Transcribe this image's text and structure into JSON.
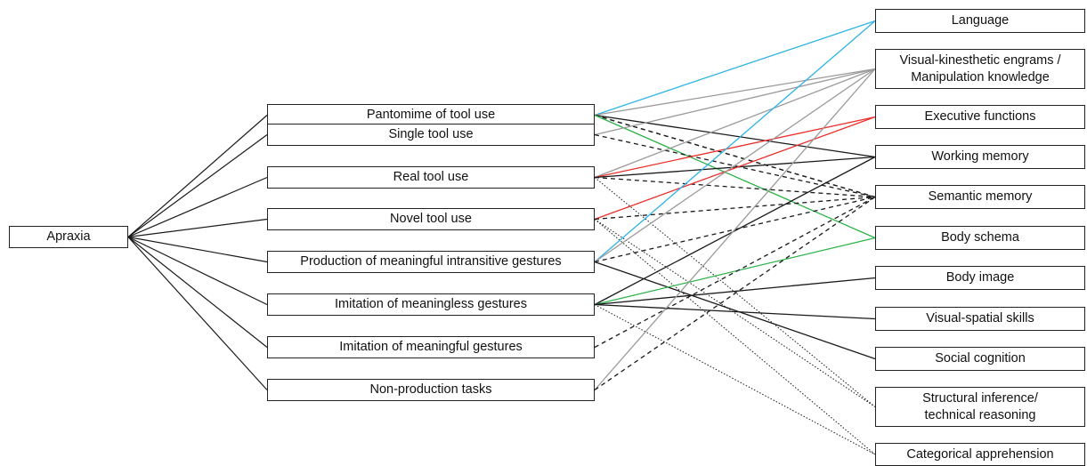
{
  "root": {
    "label": "Apraxia"
  },
  "tasks": [
    {
      "id": "t0",
      "label": "Pantomime of tool use"
    },
    {
      "id": "t1",
      "label": "Single tool use"
    },
    {
      "id": "t2",
      "label": "Real tool use"
    },
    {
      "id": "t3",
      "label": "Novel tool use"
    },
    {
      "id": "t4",
      "label": "Production of meaningful intransitive gestures"
    },
    {
      "id": "t5",
      "label": "Imitation of meaningless gestures"
    },
    {
      "id": "t6",
      "label": "Imitation of meaningful gestures"
    },
    {
      "id": "t7",
      "label": "Non-production tasks"
    }
  ],
  "functions": [
    {
      "id": "f0",
      "lines": [
        "Language"
      ]
    },
    {
      "id": "f1",
      "lines": [
        "Visual-kinesthetic engrams /",
        "Manipulation knowledge"
      ]
    },
    {
      "id": "f2",
      "lines": [
        "Executive functions"
      ]
    },
    {
      "id": "f3",
      "lines": [
        "Working memory"
      ]
    },
    {
      "id": "f4",
      "lines": [
        "Semantic memory"
      ]
    },
    {
      "id": "f5",
      "lines": [
        "Body schema"
      ]
    },
    {
      "id": "f6",
      "lines": [
        "Body image"
      ]
    },
    {
      "id": "f7",
      "lines": [
        "Visual-spatial skills"
      ]
    },
    {
      "id": "f8",
      "lines": [
        "Social cognition"
      ]
    },
    {
      "id": "f9",
      "lines": [
        "Structural inference/",
        "technical reasoning"
      ]
    },
    {
      "id": "f10",
      "lines": [
        "Categorical apprehension"
      ]
    }
  ],
  "line_colors": {
    "black": "#1a1a1a",
    "gray": "#9a9a9a",
    "blue": "#2fb3e6",
    "red": "#e8302c",
    "green": "#2db34a"
  },
  "connections": [
    {
      "from": "t0",
      "to": "f0",
      "color": "blue",
      "style": "solid"
    },
    {
      "from": "t0",
      "to": "f1",
      "color": "gray",
      "style": "solid"
    },
    {
      "from": "t0",
      "to": "f3",
      "color": "black",
      "style": "solid"
    },
    {
      "from": "t0",
      "to": "f4",
      "color": "black",
      "style": "dashed"
    },
    {
      "from": "t0",
      "to": "f4",
      "color": "black",
      "style": "dashed"
    },
    {
      "from": "t0",
      "to": "f5",
      "color": "green",
      "style": "solid"
    },
    {
      "from": "t1",
      "to": "f1",
      "color": "gray",
      "style": "solid"
    },
    {
      "from": "t1",
      "to": "f4",
      "color": "black",
      "style": "dashed"
    },
    {
      "from": "t2",
      "to": "f1",
      "color": "gray",
      "style": "solid"
    },
    {
      "from": "t2",
      "to": "f2",
      "color": "red",
      "style": "solid"
    },
    {
      "from": "t2",
      "to": "f3",
      "color": "black",
      "style": "solid"
    },
    {
      "from": "t2",
      "to": "f4",
      "color": "black",
      "style": "dashed"
    },
    {
      "from": "t2",
      "to": "f9",
      "color": "black",
      "style": "dotted"
    },
    {
      "from": "t3",
      "to": "f2",
      "color": "red",
      "style": "solid"
    },
    {
      "from": "t3",
      "to": "f4",
      "color": "black",
      "style": "dashed"
    },
    {
      "from": "t3",
      "to": "f9",
      "color": "black",
      "style": "dotted"
    },
    {
      "from": "t3",
      "to": "f10",
      "color": "black",
      "style": "dotted"
    },
    {
      "from": "t4",
      "to": "f0",
      "color": "blue",
      "style": "solid"
    },
    {
      "from": "t4",
      "to": "f1",
      "color": "gray",
      "style": "solid"
    },
    {
      "from": "t4",
      "to": "f4",
      "color": "black",
      "style": "dashed"
    },
    {
      "from": "t4",
      "to": "f8",
      "color": "black",
      "style": "solid"
    },
    {
      "from": "t5",
      "to": "f3",
      "color": "black",
      "style": "solid"
    },
    {
      "from": "t5",
      "to": "f5",
      "color": "green",
      "style": "solid"
    },
    {
      "from": "t5",
      "to": "f6",
      "color": "black",
      "style": "solid"
    },
    {
      "from": "t5",
      "to": "f7",
      "color": "black",
      "style": "solid"
    },
    {
      "from": "t5",
      "to": "f10",
      "color": "black",
      "style": "dotted"
    },
    {
      "from": "t6",
      "to": "f4",
      "color": "black",
      "style": "dashed"
    },
    {
      "from": "t7",
      "to": "f1",
      "color": "gray",
      "style": "solid"
    },
    {
      "from": "t7",
      "to": "f4",
      "color": "black",
      "style": "dashed"
    }
  ]
}
